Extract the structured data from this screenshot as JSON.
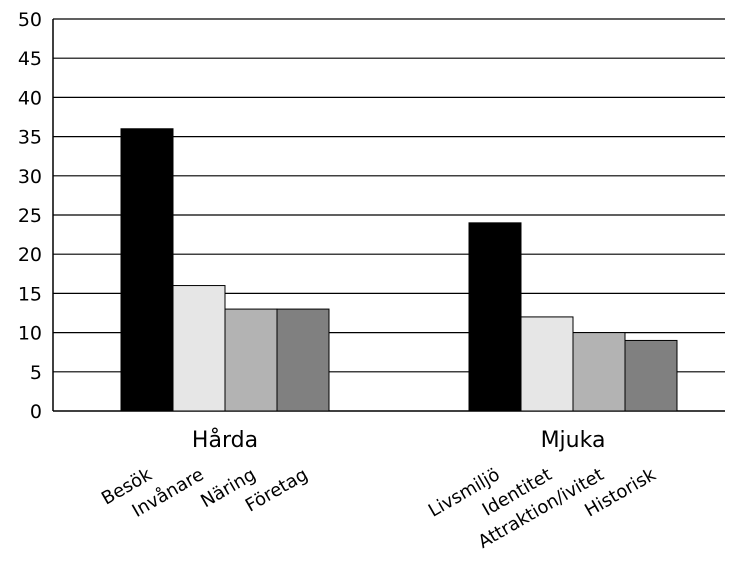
{
  "chart_data": {
    "type": "bar",
    "ylim": [
      0,
      50
    ],
    "yticks": [
      0,
      5,
      10,
      15,
      20,
      25,
      30,
      35,
      40,
      45,
      50
    ],
    "grid": true,
    "groups": [
      {
        "label": "Hårda",
        "bars": [
          {
            "label": "Besök",
            "value": 36,
            "color": "#000000"
          },
          {
            "label": "Invånare",
            "value": 16,
            "color": "#e6e6e6"
          },
          {
            "label": "Näring",
            "value": 13,
            "color": "#b3b3b3"
          },
          {
            "label": "Företag",
            "value": 13,
            "color": "#808080"
          }
        ]
      },
      {
        "label": "Mjuka",
        "bars": [
          {
            "label": "Livsmiljö",
            "value": 24,
            "color": "#000000"
          },
          {
            "label": "Identitet",
            "value": 12,
            "color": "#e6e6e6"
          },
          {
            "label": "Attraktion/ivitet",
            "value": 10,
            "color": "#b3b3b3"
          },
          {
            "label": "Historisk",
            "value": 9,
            "color": "#808080"
          }
        ]
      }
    ]
  }
}
